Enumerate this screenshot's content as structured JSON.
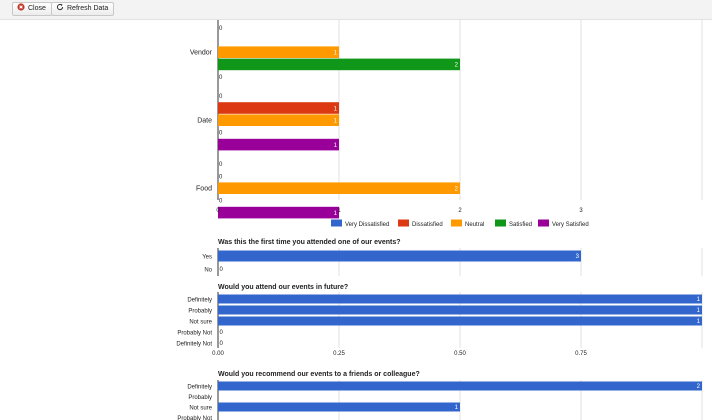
{
  "toolbar": {
    "close_label": "Close",
    "refresh_label": "Refresh Data"
  },
  "colors": {
    "very_dissatisfied": "#3366cc",
    "dissatisfied": "#dc3912",
    "neutral": "#ff9900",
    "satisfied": "#109618",
    "very_satisfied": "#990099"
  },
  "chart_data": [
    {
      "type": "bar",
      "orientation": "horizontal",
      "title": "",
      "categories": [
        "Vendor",
        "Date",
        "Food"
      ],
      "series": [
        {
          "name": "Very Dissatisfied",
          "values": [
            0,
            0,
            0
          ]
        },
        {
          "name": "Dissatisfied",
          "values": [
            null,
            1,
            0
          ]
        },
        {
          "name": "Neutral",
          "values": [
            1,
            1,
            2
          ]
        },
        {
          "name": "Satisfied",
          "values": [
            2,
            0,
            0
          ]
        },
        {
          "name": "Very Satisfied",
          "values": [
            0,
            1,
            1
          ]
        }
      ],
      "xticks": [
        "0",
        "1",
        "2",
        "3"
      ],
      "xlim": [
        0,
        4
      ],
      "legend": "bottom",
      "grid": true
    },
    {
      "type": "bar",
      "orientation": "horizontal",
      "title": "Was this the first time you attended one of our events?",
      "categories": [
        "Yes",
        "No"
      ],
      "values": [
        3,
        0
      ],
      "xlim": [
        0,
        4
      ],
      "grid": true
    },
    {
      "type": "bar",
      "orientation": "horizontal",
      "title": "Would you attend our events in future?",
      "categories": [
        "Definitely",
        "Probably",
        "Not sure",
        "Probably Not",
        "Definitely Not"
      ],
      "values": [
        1,
        1,
        1,
        0,
        0
      ],
      "xticks": [
        "0.00",
        "0.25",
        "0.50",
        "0.75"
      ],
      "xlim": [
        0,
        1
      ],
      "grid": true
    },
    {
      "type": "bar",
      "orientation": "horizontal",
      "title": "Would you recommend our events to a friends or colleague?",
      "categories": [
        "Definitely",
        "Probably",
        "Not sure",
        "Probably Not"
      ],
      "values": [
        2,
        null,
        1,
        null
      ],
      "xlim": [
        0,
        2
      ],
      "grid": true
    }
  ]
}
